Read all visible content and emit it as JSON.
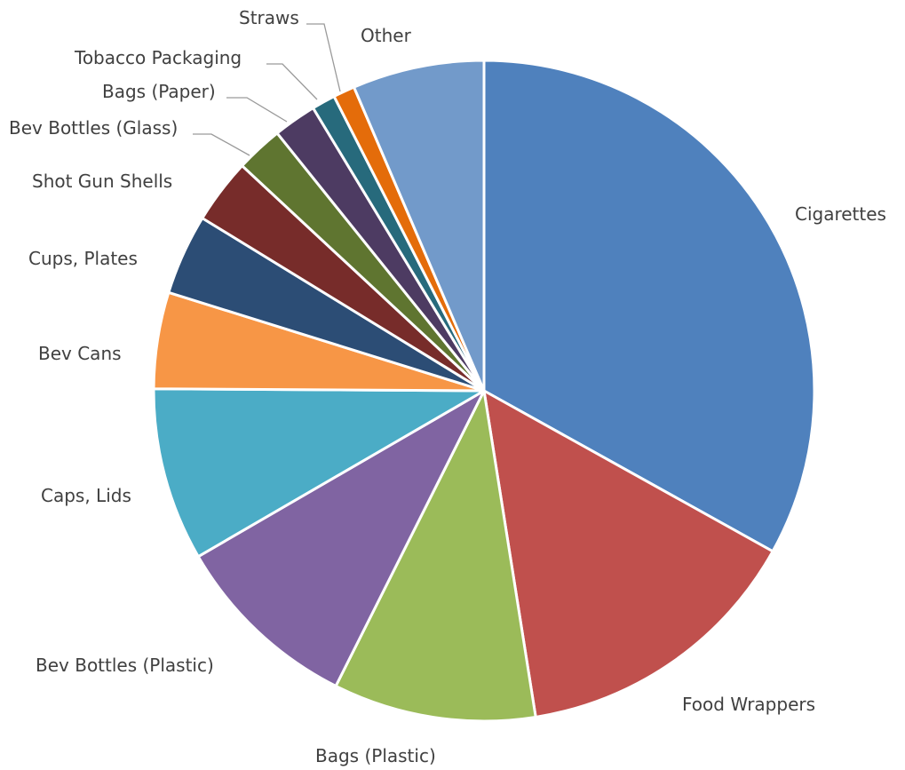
{
  "chart_data": {
    "type": "pie",
    "start_angle_deg": 0,
    "direction": "clockwise",
    "slices": [
      {
        "label": "Cigarettes",
        "value": 34.4,
        "color": "#4F81BD"
      },
      {
        "label": "Food Wrappers",
        "value": 15.0,
        "color": "#C0504D"
      },
      {
        "label": "Bags (Plastic)",
        "value": 10.3,
        "color": "#9BBB59"
      },
      {
        "label": "Bev Bottles (Plastic)",
        "value": 9.6,
        "color": "#8064A2"
      },
      {
        "label": "Caps, Lids",
        "value": 8.8,
        "color": "#4BACC6"
      },
      {
        "label": "Bev Cans",
        "value": 4.9,
        "color": "#F79646"
      },
      {
        "label": "Cups, Plates",
        "value": 4.1,
        "color": "#2C4D75"
      },
      {
        "label": "Shot Gun Shells",
        "value": 3.3,
        "color": "#772C2A"
      },
      {
        "label": "Bev Bottles (Glass)",
        "value": 2.4,
        "color": "#5F7530"
      },
      {
        "label": "Bags (Paper)",
        "value": 2.2,
        "color": "#4D3B62"
      },
      {
        "label": "Tobacco Packaging",
        "value": 1.2,
        "color": "#276A7C"
      },
      {
        "label": "Straws",
        "value": 1.1,
        "color": "#E46C0A"
      },
      {
        "label": "Other",
        "value": 6.7,
        "color": "#729ACA"
      }
    ],
    "legend": "none",
    "labels": "outside, with leader lines for small slices"
  }
}
